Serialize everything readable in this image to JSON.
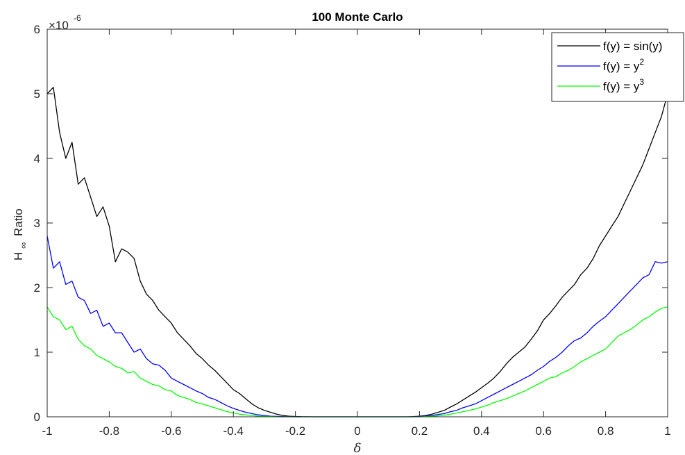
{
  "chart_data": {
    "type": "line",
    "title": "100 Monte Carlo",
    "xlabel": "δ",
    "ylabel_main": "H",
    "ylabel_sub": "∞",
    "ylabel_rest": "Ratio",
    "y_exponent_base": "×10",
    "y_exponent_power": "-6",
    "xlim": [
      -1,
      1
    ],
    "ylim": [
      0,
      6
    ],
    "x_ticks": [
      -1,
      -0.8,
      -0.6,
      -0.4,
      -0.2,
      0,
      0.2,
      0.4,
      0.6,
      0.8,
      1
    ],
    "x_tick_labels": [
      "-1",
      "-0.8",
      "-0.6",
      "-0.4",
      "-0.2",
      "0",
      "0.2",
      "0.4",
      "0.6",
      "0.8",
      "1"
    ],
    "y_ticks": [
      0,
      1,
      2,
      3,
      4,
      5,
      6
    ],
    "y_tick_labels": [
      "0",
      "1",
      "2",
      "3",
      "4",
      "5",
      "6"
    ],
    "grid": false,
    "legend_position": "top-right",
    "units_scale": 1e-06,
    "series": [
      {
        "name": "f(y) = sin(y)",
        "legend_base": "f(y) = sin(y)",
        "legend_sup": "",
        "color": "#000000",
        "x": [
          -1,
          -0.98,
          -0.96,
          -0.94,
          -0.92,
          -0.9,
          -0.88,
          -0.86,
          -0.84,
          -0.82,
          -0.8,
          -0.78,
          -0.76,
          -0.74,
          -0.72,
          -0.7,
          -0.68,
          -0.66,
          -0.64,
          -0.62,
          -0.6,
          -0.58,
          -0.56,
          -0.54,
          -0.52,
          -0.5,
          -0.48,
          -0.46,
          -0.44,
          -0.42,
          -0.4,
          -0.38,
          -0.36,
          -0.34,
          -0.32,
          -0.3,
          -0.28,
          -0.26,
          -0.24,
          -0.22,
          -0.2,
          -0.18,
          -0.16,
          -0.14,
          -0.12,
          -0.1,
          -0.08,
          -0.06,
          -0.04,
          -0.02,
          0,
          0.02,
          0.04,
          0.06,
          0.08,
          0.1,
          0.12,
          0.14,
          0.16,
          0.18,
          0.2,
          0.22,
          0.24,
          0.26,
          0.28,
          0.3,
          0.32,
          0.34,
          0.36,
          0.38,
          0.4,
          0.42,
          0.44,
          0.46,
          0.48,
          0.5,
          0.52,
          0.54,
          0.56,
          0.58,
          0.6,
          0.62,
          0.64,
          0.66,
          0.68,
          0.7,
          0.72,
          0.74,
          0.76,
          0.78,
          0.8,
          0.82,
          0.84,
          0.86,
          0.88,
          0.9,
          0.92,
          0.94,
          0.96,
          0.98,
          1
        ],
        "values": [
          5.0,
          5.1,
          4.4,
          4.0,
          4.25,
          3.6,
          3.7,
          3.4,
          3.1,
          3.25,
          2.95,
          2.4,
          2.6,
          2.55,
          2.45,
          2.1,
          1.9,
          1.8,
          1.65,
          1.55,
          1.45,
          1.3,
          1.2,
          1.1,
          0.98,
          0.9,
          0.8,
          0.72,
          0.62,
          0.52,
          0.42,
          0.36,
          0.28,
          0.2,
          0.14,
          0.1,
          0.07,
          0.04,
          0.02,
          0.01,
          0.005,
          0.002,
          0.001,
          0.0,
          0.0,
          0.0,
          0.0,
          0.0,
          0.0,
          0.0,
          0.0,
          0.0,
          0.0,
          0.0,
          0.0,
          0.0,
          0.0,
          0.0,
          0.0,
          0.003,
          0.01,
          0.02,
          0.04,
          0.07,
          0.1,
          0.15,
          0.2,
          0.26,
          0.32,
          0.38,
          0.45,
          0.52,
          0.6,
          0.7,
          0.82,
          0.92,
          1.0,
          1.08,
          1.2,
          1.33,
          1.5,
          1.6,
          1.72,
          1.85,
          1.95,
          2.05,
          2.2,
          2.3,
          2.45,
          2.65,
          2.8,
          2.95,
          3.1,
          3.3,
          3.5,
          3.7,
          3.9,
          4.15,
          4.4,
          4.65,
          5.0
        ]
      },
      {
        "name": "f(y) = y^2",
        "legend_base": "f(y) = y",
        "legend_sup": "2",
        "color": "#0000ff",
        "x": [
          -1,
          -0.98,
          -0.96,
          -0.94,
          -0.92,
          -0.9,
          -0.88,
          -0.86,
          -0.84,
          -0.82,
          -0.8,
          -0.78,
          -0.76,
          -0.74,
          -0.72,
          -0.7,
          -0.68,
          -0.66,
          -0.64,
          -0.62,
          -0.6,
          -0.58,
          -0.56,
          -0.54,
          -0.52,
          -0.5,
          -0.48,
          -0.46,
          -0.44,
          -0.42,
          -0.4,
          -0.38,
          -0.36,
          -0.34,
          -0.32,
          -0.3,
          -0.28,
          -0.26,
          -0.24,
          -0.22,
          -0.2,
          -0.18,
          -0.16,
          -0.14,
          -0.12,
          -0.1,
          -0.08,
          -0.06,
          -0.04,
          -0.02,
          0,
          0.02,
          0.04,
          0.06,
          0.08,
          0.1,
          0.12,
          0.14,
          0.16,
          0.18,
          0.2,
          0.22,
          0.24,
          0.26,
          0.28,
          0.3,
          0.32,
          0.34,
          0.36,
          0.38,
          0.4,
          0.42,
          0.44,
          0.46,
          0.48,
          0.5,
          0.52,
          0.54,
          0.56,
          0.58,
          0.6,
          0.62,
          0.64,
          0.66,
          0.68,
          0.7,
          0.72,
          0.74,
          0.76,
          0.78,
          0.8,
          0.82,
          0.84,
          0.86,
          0.88,
          0.9,
          0.92,
          0.94,
          0.96,
          0.98,
          1
        ],
        "values": [
          2.8,
          2.3,
          2.4,
          2.05,
          2.1,
          1.85,
          1.8,
          1.6,
          1.65,
          1.4,
          1.45,
          1.3,
          1.3,
          1.15,
          1.0,
          1.05,
          0.9,
          0.82,
          0.8,
          0.72,
          0.6,
          0.55,
          0.5,
          0.45,
          0.4,
          0.36,
          0.3,
          0.27,
          0.22,
          0.17,
          0.13,
          0.1,
          0.07,
          0.05,
          0.03,
          0.02,
          0.01,
          0.006,
          0.003,
          0.001,
          0.0,
          0.0,
          0.0,
          0.0,
          0.0,
          0.0,
          0.0,
          0.0,
          0.0,
          0.0,
          0.0,
          0.0,
          0.0,
          0.0,
          0.0,
          0.0,
          0.0,
          0.0,
          0.0,
          0.0,
          0.004,
          0.01,
          0.02,
          0.035,
          0.05,
          0.08,
          0.1,
          0.14,
          0.17,
          0.2,
          0.25,
          0.3,
          0.35,
          0.4,
          0.45,
          0.5,
          0.55,
          0.6,
          0.65,
          0.72,
          0.78,
          0.86,
          0.92,
          1.0,
          1.1,
          1.18,
          1.22,
          1.3,
          1.4,
          1.48,
          1.55,
          1.65,
          1.75,
          1.85,
          1.95,
          2.05,
          2.15,
          2.2,
          2.4,
          2.38,
          2.4
        ]
      },
      {
        "name": "f(y) = y^3",
        "legend_base": "f(y) = y",
        "legend_sup": "3",
        "color": "#00ff00",
        "x": [
          -1,
          -0.98,
          -0.96,
          -0.94,
          -0.92,
          -0.9,
          -0.88,
          -0.86,
          -0.84,
          -0.82,
          -0.8,
          -0.78,
          -0.76,
          -0.74,
          -0.72,
          -0.7,
          -0.68,
          -0.66,
          -0.64,
          -0.62,
          -0.6,
          -0.58,
          -0.56,
          -0.54,
          -0.52,
          -0.5,
          -0.48,
          -0.46,
          -0.44,
          -0.42,
          -0.4,
          -0.38,
          -0.36,
          -0.34,
          -0.32,
          -0.3,
          -0.28,
          -0.26,
          -0.24,
          -0.22,
          -0.2,
          -0.18,
          -0.16,
          -0.14,
          -0.12,
          -0.1,
          -0.08,
          -0.06,
          -0.04,
          -0.02,
          0,
          0.02,
          0.04,
          0.06,
          0.08,
          0.1,
          0.12,
          0.14,
          0.16,
          0.18,
          0.2,
          0.22,
          0.24,
          0.26,
          0.28,
          0.3,
          0.32,
          0.34,
          0.36,
          0.38,
          0.4,
          0.42,
          0.44,
          0.46,
          0.48,
          0.5,
          0.52,
          0.54,
          0.56,
          0.58,
          0.6,
          0.62,
          0.64,
          0.66,
          0.68,
          0.7,
          0.72,
          0.74,
          0.76,
          0.78,
          0.8,
          0.82,
          0.84,
          0.86,
          0.88,
          0.9,
          0.92,
          0.94,
          0.96,
          0.98,
          1
        ],
        "values": [
          1.7,
          1.55,
          1.5,
          1.35,
          1.4,
          1.2,
          1.1,
          1.05,
          0.95,
          0.9,
          0.85,
          0.78,
          0.75,
          0.68,
          0.7,
          0.6,
          0.55,
          0.5,
          0.48,
          0.42,
          0.4,
          0.33,
          0.3,
          0.27,
          0.22,
          0.2,
          0.17,
          0.14,
          0.11,
          0.08,
          0.06,
          0.04,
          0.03,
          0.02,
          0.01,
          0.006,
          0.003,
          0.001,
          0.0,
          0.0,
          0.0,
          0.0,
          0.0,
          0.0,
          0.0,
          0.0,
          0.0,
          0.0,
          0.0,
          0.0,
          0.0,
          0.0,
          0.0,
          0.0,
          0.0,
          0.0,
          0.0,
          0.0,
          0.0,
          0.0,
          0.0,
          0.003,
          0.008,
          0.015,
          0.025,
          0.04,
          0.06,
          0.08,
          0.1,
          0.12,
          0.15,
          0.18,
          0.22,
          0.25,
          0.28,
          0.32,
          0.36,
          0.4,
          0.45,
          0.5,
          0.55,
          0.6,
          0.62,
          0.68,
          0.72,
          0.78,
          0.85,
          0.9,
          0.95,
          1.0,
          1.05,
          1.15,
          1.25,
          1.3,
          1.35,
          1.42,
          1.5,
          1.55,
          1.62,
          1.68,
          1.7
        ]
      }
    ]
  }
}
